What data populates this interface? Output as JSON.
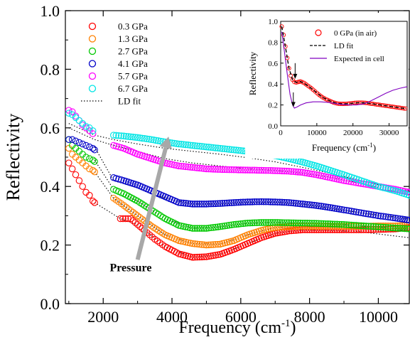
{
  "chart_data": [
    {
      "type": "scatter",
      "xlabel": "Frequency (cm",
      "xlabel_sup": "-1",
      "xlabel_close": ")",
      "ylabel": "Reflectivity",
      "xlim": [
        900,
        10900
      ],
      "ylim": [
        0.0,
        1.0
      ],
      "xticks": [
        2000,
        4000,
        6000,
        8000,
        10000
      ],
      "xtick_labels": [
        "2000",
        "4000",
        "6000",
        "8000",
        "10000"
      ],
      "yticks": [
        0.0,
        0.2,
        0.4,
        0.6,
        0.8,
        1.0
      ],
      "ytick_labels": [
        "0.0",
        "0.2",
        "0.4",
        "0.6",
        "0.8",
        "1.0"
      ],
      "grid": false,
      "legend_position": "top-left",
      "annotation": {
        "text": "Pressure",
        "arrow_from": [
          3000,
          0.15
        ],
        "arrow_to": [
          3900,
          0.57
        ]
      },
      "fit_label": "LD fit",
      "series": [
        {
          "name": "0.3 GPa",
          "color": "#ff0000",
          "segments": [
            {
              "x": [
                1000,
                1100,
                1200,
                1300,
                1400,
                1500,
                1600,
                1700,
                1750
              ],
              "y": [
                0.48,
                0.46,
                0.44,
                0.42,
                0.4,
                0.38,
                0.37,
                0.35,
                0.345
              ]
            },
            {
              "x": [
                2500,
                2800,
                3000,
                3200,
                3500,
                3800,
                4200,
                4600,
                5000,
                5400,
                5800,
                6200,
                6600,
                7000,
                7400,
                7800,
                8200,
                8600,
                9000,
                9500,
                10000,
                10500,
                10900
              ],
              "y": [
                0.29,
                0.29,
                0.27,
                0.25,
                0.22,
                0.195,
                0.17,
                0.158,
                0.16,
                0.168,
                0.185,
                0.205,
                0.225,
                0.24,
                0.248,
                0.252,
                0.252,
                0.252,
                0.252,
                0.252,
                0.253,
                0.255,
                0.26
              ]
            }
          ]
        },
        {
          "name": "1.3 GPa",
          "color": "#ff8000",
          "segments": [
            {
              "x": [
                1000,
                1100,
                1200,
                1300,
                1400,
                1500,
                1600,
                1700,
                1750
              ],
              "y": [
                0.53,
                0.51,
                0.5,
                0.49,
                0.48,
                0.47,
                0.46,
                0.455,
                0.45
              ]
            },
            {
              "x": [
                2300,
                2600,
                3000,
                3400,
                3800,
                4200,
                4600,
                5000,
                5400,
                5800,
                6200,
                6600,
                7000,
                7400,
                7800,
                8200,
                8600,
                9000,
                9500,
                10000,
                10500,
                10900
              ],
              "y": [
                0.36,
                0.335,
                0.3,
                0.265,
                0.235,
                0.215,
                0.205,
                0.2,
                0.203,
                0.215,
                0.235,
                0.25,
                0.26,
                0.263,
                0.264,
                0.264,
                0.264,
                0.264,
                0.264,
                0.265,
                0.265,
                0.268
              ]
            }
          ]
        },
        {
          "name": "2.7 GPa",
          "color": "#00c800",
          "segments": [
            {
              "x": [
                1000,
                1100,
                1200,
                1300,
                1400,
                1500,
                1600,
                1700,
                1750
              ],
              "y": [
                0.56,
                0.54,
                0.53,
                0.52,
                0.51,
                0.5,
                0.495,
                0.49,
                0.485
              ]
            },
            {
              "x": [
                2300,
                2600,
                3000,
                3400,
                3800,
                4200,
                4600,
                5000,
                5400,
                5800,
                6200,
                6600,
                7000,
                7400,
                7800,
                8200,
                8600,
                9000,
                9500,
                10000,
                10500,
                10900
              ],
              "y": [
                0.39,
                0.375,
                0.35,
                0.32,
                0.29,
                0.267,
                0.257,
                0.257,
                0.263,
                0.27,
                0.275,
                0.277,
                0.277,
                0.276,
                0.275,
                0.274,
                0.272,
                0.27,
                0.266,
                0.262,
                0.258,
                0.255
              ]
            }
          ]
        },
        {
          "name": "4.1 GPa",
          "color": "#0000c8",
          "segments": [
            {
              "x": [
                1000,
                1100,
                1200,
                1300,
                1400,
                1500,
                1600,
                1700,
                1750
              ],
              "y": [
                0.56,
                0.56,
                0.555,
                0.55,
                0.545,
                0.54,
                0.535,
                0.53,
                0.525
              ]
            },
            {
              "x": [
                2300,
                2600,
                3000,
                3400,
                3800,
                4200,
                4600,
                5000,
                5400,
                5800,
                6200,
                6600,
                7000,
                7400,
                7800,
                8200,
                8600,
                9000,
                9500,
                10000,
                10500,
                10900
              ],
              "y": [
                0.43,
                0.42,
                0.405,
                0.385,
                0.365,
                0.345,
                0.34,
                0.34,
                0.342,
                0.345,
                0.347,
                0.348,
                0.347,
                0.345,
                0.34,
                0.335,
                0.328,
                0.32,
                0.31,
                0.3,
                0.292,
                0.285
              ]
            }
          ]
        },
        {
          "name": "5.7 GPa",
          "color": "#ff00ff",
          "segments": [
            {
              "x": [
                1000,
                1100,
                1200,
                1300,
                1400,
                1500,
                1600,
                1700
              ],
              "y": [
                0.66,
                0.655,
                0.64,
                0.625,
                0.61,
                0.6,
                0.59,
                0.58
              ]
            },
            {
              "x": [
                2300,
                2600,
                3000,
                3400,
                3800,
                4200,
                4600,
                5000,
                5400,
                5800,
                6200,
                6600,
                7000,
                7400,
                7800,
                8200,
                8600,
                9000,
                9500,
                10000,
                10500,
                10900
              ],
              "y": [
                0.54,
                0.53,
                0.51,
                0.495,
                0.48,
                0.47,
                0.465,
                0.46,
                0.458,
                0.457,
                0.456,
                0.455,
                0.454,
                0.452,
                0.448,
                0.44,
                0.43,
                0.42,
                0.41,
                0.4,
                0.39,
                0.38
              ]
            }
          ]
        },
        {
          "name": "6.7 GPa",
          "color": "#00e5e5",
          "segments": [
            {
              "x": [
                1000,
                1100,
                1200,
                1300,
                1400,
                1500,
                1600,
                1700
              ],
              "y": [
                0.65,
                0.645,
                0.635,
                0.625,
                0.615,
                0.605,
                0.6,
                0.59
              ]
            },
            {
              "x": [
                2300,
                2600,
                3000,
                3400,
                3800,
                4200,
                4600,
                5000,
                5400,
                5800,
                6200,
                6600,
                7000,
                7400,
                7800,
                8200,
                8600,
                9000,
                9500,
                10000,
                10500,
                10900
              ],
              "y": [
                0.575,
                0.572,
                0.567,
                0.56,
                0.552,
                0.545,
                0.54,
                0.535,
                0.53,
                0.525,
                0.52,
                0.513,
                0.505,
                0.495,
                0.483,
                0.47,
                0.455,
                0.44,
                0.42,
                0.4,
                0.385,
                0.37
              ]
            }
          ]
        }
      ],
      "fit_lines": [
        {
          "x": [
            1000,
            1750,
            2300,
            3000,
            3800,
            4600,
            5400,
            6200,
            7000,
            7800,
            8600,
            9500,
            10200,
            10900
          ],
          "y": [
            0.615,
            0.575,
            0.56,
            0.545,
            0.53,
            0.52,
            0.51,
            0.498,
            0.484,
            0.465,
            0.445,
            0.42,
            0.4,
            0.385
          ]
        },
        {
          "x": [
            1000,
            1750,
            2300,
            3000,
            3800,
            4600,
            5400,
            6200,
            7000,
            7800,
            8600,
            9500,
            10200,
            10900
          ],
          "y": [
            0.6,
            0.56,
            0.54,
            0.52,
            0.495,
            0.48,
            0.47,
            0.46,
            0.455,
            0.445,
            0.432,
            0.41,
            0.39,
            0.372
          ]
        },
        {
          "x": [
            1750,
            2300,
            3000,
            3800,
            4600,
            5400,
            6200,
            7000,
            7800,
            8600,
            9500,
            10200,
            10900
          ],
          "y": [
            0.535,
            0.42,
            0.395,
            0.36,
            0.34,
            0.34,
            0.345,
            0.346,
            0.34,
            0.325,
            0.31,
            0.3,
            0.29
          ]
        },
        {
          "x": [
            1750,
            2300,
            3000,
            3800,
            4600,
            5400,
            6200,
            7000,
            7800,
            8600,
            9500,
            10200,
            10900
          ],
          "y": [
            0.49,
            0.39,
            0.35,
            0.29,
            0.257,
            0.262,
            0.274,
            0.277,
            0.275,
            0.272,
            0.265,
            0.26,
            0.255
          ]
        },
        {
          "x": [
            1750,
            2300,
            3000,
            3800,
            4600,
            5400,
            6200,
            7000,
            7800,
            8600,
            9500,
            10200,
            10900
          ],
          "y": [
            0.45,
            0.36,
            0.3,
            0.235,
            0.205,
            0.203,
            0.235,
            0.26,
            0.264,
            0.262,
            0.258,
            0.252,
            0.25
          ]
        },
        {
          "x": [
            1750,
            2500,
            3000,
            3800,
            4600,
            5400,
            6200,
            7000,
            7800,
            8600,
            9500,
            10200,
            10900
          ],
          "y": [
            0.345,
            0.29,
            0.27,
            0.195,
            0.158,
            0.168,
            0.205,
            0.24,
            0.252,
            0.25,
            0.245,
            0.235,
            0.225
          ]
        }
      ]
    },
    {
      "type": "line",
      "xlabel": "Frequency (cm",
      "xlabel_sup": "-1",
      "xlabel_close": ")",
      "ylabel": "Reflectivity",
      "xlim": [
        0,
        35000
      ],
      "ylim": [
        0.0,
        1.0
      ],
      "xticks": [
        0,
        10000,
        20000,
        30000
      ],
      "xtick_labels": [
        "0",
        "10000",
        "20000",
        "30000"
      ],
      "yticks": [
        0.0,
        0.2,
        0.4,
        0.6,
        0.8,
        1.0
      ],
      "ytick_labels": [
        "0.0",
        "0.2",
        "0.4",
        "0.6",
        "0.8",
        "1.0"
      ],
      "grid": false,
      "legend_position": "top-right",
      "arrows": [
        {
          "x": 4000,
          "y_from": 0.6,
          "y_to": 0.45
        },
        {
          "x": 3500,
          "y_from": 0.32,
          "y_to": 0.18
        }
      ],
      "series": [
        {
          "name": "0 GPa (in air)",
          "color": "#ff0000",
          "style": "markers",
          "x": [
            300,
            800,
            1300,
            1800,
            2300,
            2800,
            3300,
            3800,
            4300,
            4800,
            5500,
            6500,
            7500,
            8500,
            9500,
            10500,
            11500,
            12500,
            13500,
            14500,
            15500,
            16500,
            17500,
            18500,
            19500,
            20500,
            21500,
            22500,
            23500,
            24500,
            25500,
            26500,
            27500,
            28500,
            29500,
            30500,
            31500,
            32500,
            33500,
            34500
          ],
          "y": [
            0.95,
            0.87,
            0.76,
            0.65,
            0.55,
            0.48,
            0.44,
            0.42,
            0.415,
            0.42,
            0.425,
            0.41,
            0.385,
            0.36,
            0.33,
            0.3,
            0.275,
            0.255,
            0.24,
            0.225,
            0.215,
            0.21,
            0.21,
            0.212,
            0.215,
            0.22,
            0.222,
            0.222,
            0.22,
            0.215,
            0.21,
            0.205,
            0.2,
            0.195,
            0.19,
            0.185,
            0.18,
            0.175,
            0.17,
            0.165
          ]
        },
        {
          "name": "LD fit",
          "color": "#000000",
          "style": "dashed",
          "x": [
            300,
            1300,
            2300,
            3300,
            4300,
            5500,
            7500,
            9500,
            11500,
            13500,
            15500,
            17500,
            19500,
            21500,
            23500,
            25500,
            27500,
            29500,
            31500,
            33500,
            35000
          ],
          "y": [
            0.95,
            0.76,
            0.55,
            0.44,
            0.415,
            0.425,
            0.385,
            0.33,
            0.275,
            0.24,
            0.215,
            0.21,
            0.215,
            0.222,
            0.22,
            0.21,
            0.2,
            0.19,
            0.18,
            0.17,
            0.163
          ]
        },
        {
          "name": "Expected in cell",
          "color": "#8000c0",
          "style": "solid",
          "x": [
            300,
            1000,
            1800,
            2600,
            3300,
            3800,
            4500,
            5500,
            7000,
            9000,
            11000,
            13000,
            15000,
            17000,
            19000,
            21000,
            23000,
            25000,
            27000,
            29000,
            31000,
            33000,
            35000
          ],
          "y": [
            0.9,
            0.72,
            0.5,
            0.3,
            0.2,
            0.17,
            0.18,
            0.2,
            0.22,
            0.23,
            0.23,
            0.225,
            0.215,
            0.205,
            0.2,
            0.2,
            0.21,
            0.24,
            0.275,
            0.31,
            0.34,
            0.36,
            0.375
          ]
        }
      ]
    }
  ]
}
